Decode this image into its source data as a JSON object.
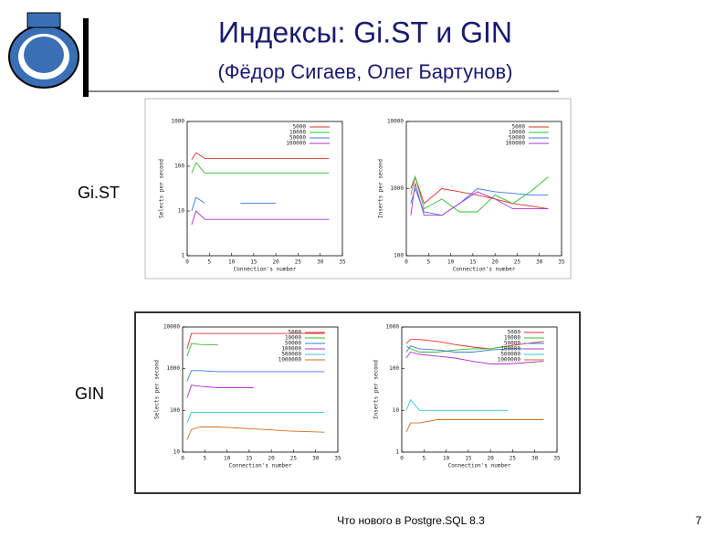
{
  "slide": {
    "title": "Индексы: Gi.ST и GIN",
    "subtitle": "(Фёдор Сигаев, Олег Бартунов)",
    "labels": [
      "Gi.ST",
      "GIN"
    ],
    "footer": "Что нового в Postgre.SQL 8.3",
    "page_number": "7"
  },
  "chart_data": [
    {
      "type": "line",
      "log_y": true,
      "xlabel": "Connection's number",
      "ylabel": "Selects per second",
      "x": [
        1,
        2,
        4,
        8,
        12,
        16,
        20,
        24,
        28,
        32
      ],
      "xlim": [
        0,
        35
      ],
      "xticks": [
        0,
        5,
        10,
        15,
        20,
        25,
        30,
        35
      ],
      "ylim": [
        1,
        1000
      ],
      "yticks": [
        1,
        10,
        100,
        1000
      ],
      "series": [
        {
          "name": "5000",
          "color": "#e0302a",
          "values": [
            140,
            200,
            150,
            150,
            150,
            150,
            150,
            150,
            150,
            150
          ]
        },
        {
          "name": "10000",
          "color": "#2ec02e",
          "values": [
            70,
            120,
            70,
            70,
            70,
            70,
            70,
            70,
            70,
            70
          ]
        },
        {
          "name": "50000",
          "color": "#3a7ae0",
          "values": [
            10,
            20,
            15,
            null,
            15,
            15,
            15,
            null,
            null,
            null
          ]
        },
        {
          "name": "100000",
          "color": "#b030d0",
          "values": [
            5,
            10,
            6.5,
            6.5,
            6.5,
            6.5,
            6.5,
            6.5,
            6.5,
            6.5
          ]
        }
      ]
    },
    {
      "type": "line",
      "log_y": true,
      "xlabel": "Connection's number",
      "ylabel": "Inserts per second",
      "x": [
        1,
        2,
        4,
        8,
        12,
        16,
        20,
        24,
        28,
        32
      ],
      "xlim": [
        0,
        35
      ],
      "xticks": [
        0,
        5,
        10,
        15,
        20,
        25,
        30,
        35
      ],
      "ylim": [
        100,
        10000
      ],
      "yticks": [
        100,
        1000,
        10000
      ],
      "series": [
        {
          "name": "5000",
          "color": "#e0302a",
          "values": [
            1000,
            1500,
            600,
            1000,
            900,
            800,
            700,
            600,
            550,
            500
          ]
        },
        {
          "name": "10000",
          "color": "#2ec02e",
          "values": [
            800,
            1500,
            500,
            700,
            450,
            450,
            800,
            600,
            900,
            1500
          ]
        },
        {
          "name": "50000",
          "color": "#3a7ae0",
          "values": [
            600,
            1000,
            450,
            400,
            600,
            1000,
            900,
            850,
            800,
            800
          ]
        },
        {
          "name": "100000",
          "color": "#b030d0",
          "values": [
            400,
            1200,
            400,
            400,
            600,
            900,
            700,
            500,
            500,
            500
          ]
        }
      ]
    },
    {
      "type": "line",
      "log_y": true,
      "xlabel": "Connection's number",
      "ylabel": "Selects per second",
      "x": [
        1,
        2,
        4,
        8,
        12,
        16,
        20,
        24,
        28,
        32
      ],
      "xlim": [
        0,
        35
      ],
      "xticks": [
        0,
        5,
        10,
        15,
        20,
        25,
        30,
        35
      ],
      "ylim": [
        10,
        10000
      ],
      "yticks": [
        10,
        100,
        1000,
        10000
      ],
      "series": [
        {
          "name": "5000",
          "color": "#e0302a",
          "values": [
            3000,
            7000,
            7000,
            7000,
            7000,
            7000,
            7000,
            7000,
            7000,
            7000
          ]
        },
        {
          "name": "10000",
          "color": "#2ec02e",
          "values": [
            2000,
            4000,
            3800,
            3700,
            null,
            null,
            null,
            null,
            null,
            null
          ]
        },
        {
          "name": "50000",
          "color": "#3a7ae0",
          "values": [
            500,
            900,
            900,
            850,
            850,
            850,
            850,
            850,
            850,
            850
          ]
        },
        {
          "name": "100000",
          "color": "#b030d0",
          "values": [
            200,
            400,
            380,
            350,
            350,
            350,
            null,
            null,
            null,
            null
          ]
        },
        {
          "name": "500000",
          "color": "#30c8d8",
          "values": [
            50,
            90,
            90,
            90,
            90,
            90,
            90,
            90,
            90,
            90
          ]
        },
        {
          "name": "1000000",
          "color": "#d07020",
          "values": [
            20,
            35,
            40,
            40,
            38,
            36,
            34,
            32,
            31,
            30
          ]
        }
      ]
    },
    {
      "type": "line",
      "log_y": true,
      "xlabel": "Connection's number",
      "ylabel": "Inserts per second",
      "x": [
        1,
        2,
        4,
        8,
        12,
        16,
        20,
        24,
        28,
        32
      ],
      "xlim": [
        0,
        35
      ],
      "xticks": [
        0,
        5,
        10,
        15,
        20,
        25,
        30,
        35
      ],
      "ylim": [
        1,
        1000
      ],
      "yticks": [
        1,
        10,
        100,
        1000
      ],
      "series": [
        {
          "name": "5000",
          "color": "#e0302a",
          "values": [
            400,
            500,
            500,
            450,
            380,
            330,
            300,
            350,
            400,
            450
          ]
        },
        {
          "name": "10000",
          "color": "#2ec02e",
          "values": [
            350,
            300,
            250,
            250,
            280,
            300,
            300,
            350,
            null,
            null
          ]
        },
        {
          "name": "50000",
          "color": "#3a7ae0",
          "values": [
            250,
            350,
            300,
            280,
            250,
            250,
            280,
            300,
            300,
            300
          ]
        },
        {
          "name": "100000",
          "color": "#b030d0",
          "values": [
            180,
            250,
            220,
            200,
            180,
            150,
            130,
            130,
            140,
            150
          ]
        },
        {
          "name": "500000",
          "color": "#30c8d8",
          "values": [
            10,
            18,
            10,
            10,
            10,
            10,
            10,
            10,
            null,
            null
          ]
        },
        {
          "name": "1000000",
          "color": "#d07020",
          "values": [
            3,
            5,
            5,
            6,
            6,
            6,
            6,
            6,
            6,
            6
          ]
        }
      ]
    }
  ]
}
